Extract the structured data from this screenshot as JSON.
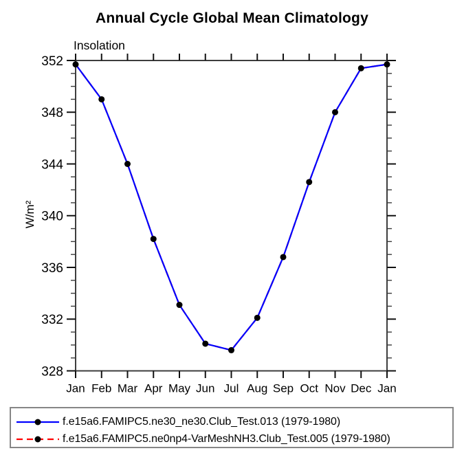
{
  "chart_data": {
    "type": "line",
    "title": "Annual Cycle Global Mean Climatology",
    "subtitle": "Insolation",
    "ylabel": "W/m²",
    "xlabel": "",
    "categories": [
      "Jan",
      "Feb",
      "Mar",
      "Apr",
      "May",
      "Jun",
      "Jul",
      "Aug",
      "Sep",
      "Oct",
      "Nov",
      "Dec",
      "Jan"
    ],
    "ylim": [
      328,
      352
    ],
    "yticks_major": [
      328,
      332,
      336,
      340,
      344,
      348,
      352
    ],
    "ytick_minor_step": 1,
    "grid": false,
    "legend_position": "bottom",
    "axis_color": "#3d3d3d",
    "tick_color": "#111111",
    "series": [
      {
        "name": "f.e15a6.FAMIPC5.ne30_ne30.Club_Test.013 (1979-1980)",
        "color": "#0000ff",
        "line_style": "solid",
        "marker": "circle",
        "marker_color": "#000000",
        "values": [
          351.7,
          349.0,
          344.0,
          338.2,
          333.1,
          330.1,
          329.6,
          332.1,
          336.8,
          342.6,
          348.0,
          351.4,
          351.7
        ]
      },
      {
        "name": "f.e15a6.FAMIPC5.ne0np4-VarMeshNH3.Club_Test.005 (1979-1980)",
        "color": "#ff0000",
        "line_style": "dashed",
        "marker": "circle",
        "marker_color": "#000000",
        "values": [
          351.7,
          349.0,
          344.0,
          338.2,
          333.1,
          330.1,
          329.6,
          332.1,
          336.8,
          342.6,
          348.0,
          351.4,
          351.7
        ]
      }
    ]
  }
}
